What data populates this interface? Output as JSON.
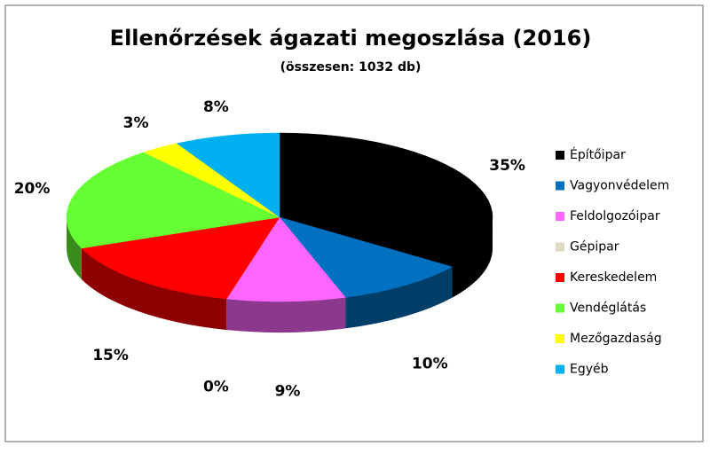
{
  "chart_data": {
    "type": "pie3d",
    "title": "Ellenőrzések ágazati megoszlása (2016)",
    "subtitle": "(összesen: 1032 db)",
    "categories": [
      "Építőipar",
      "Vagyonvédelem",
      "Feldolgozóipar",
      "Gépipar",
      "Kereskedelem",
      "Vendéglátás",
      "Mezőgazdaság",
      "Egyéb"
    ],
    "values": [
      35,
      10,
      9,
      0,
      15,
      20,
      3,
      8
    ],
    "value_labels": [
      "35%",
      "10%",
      "9%",
      "0%",
      "15%",
      "20%",
      "3%",
      "8%"
    ],
    "colors": [
      "#000000",
      "#0070c0",
      "#ff66ff",
      "#ddd9c3",
      "#ff0000",
      "#66ff33",
      "#ffff00",
      "#00b0f0"
    ],
    "legend": "right"
  }
}
